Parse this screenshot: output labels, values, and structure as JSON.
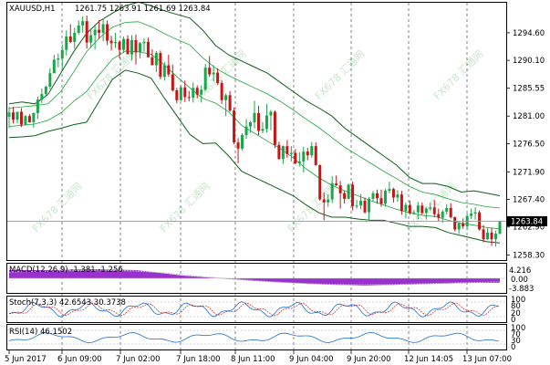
{
  "header": {
    "symbol_label": "XAUUSD,H1",
    "ohlc_label": "1261.75 1263.91 1261.69 1263.84"
  },
  "price_axis": {
    "ticks": [
      "1294.60",
      "1290.10",
      "1285.55",
      "1281.00",
      "1276.50",
      "1271.90",
      "1267.40",
      "1262.90",
      "1258.30"
    ]
  },
  "current_price": {
    "label": "1263.84",
    "value": 1263.84
  },
  "time_axis": {
    "labels": [
      "5 Jun 2017",
      "6 Jun 09:00",
      "7 Jun 02:00",
      "7 Jun 18:00",
      "8 Jun 11:00",
      "9 Jun 04:00",
      "9 Jun 20:00",
      "12 Jun 14:05",
      "13 Jun 07:00"
    ]
  },
  "watermark": {
    "text": "FX678 汇通网"
  },
  "macd": {
    "label": "MACD(12,26,9) -1.381 -1.256",
    "ticks": [
      "4.216",
      "0.00",
      "-3.883"
    ]
  },
  "stoch": {
    "label": "Stoch(7,3,3) 42.6543 30.3738",
    "ticks": [
      "100",
      "80",
      "20",
      "0"
    ]
  },
  "rsi": {
    "label": "RSI(14) 46.1502",
    "ticks": [
      "100",
      "70",
      "30",
      "0"
    ]
  },
  "colors": {
    "bull": "#17a84a",
    "bear": "#c81414",
    "band_outer": "#0f5e1a",
    "band_inner": "#1fa33a",
    "macd_fill": "#9932cc",
    "stoch_main": "#1e6fd6",
    "stoch_signal": "#d02020",
    "rsi_line": "#1e6fd6"
  },
  "chart_data": {
    "type": "candlestick",
    "title": "XAUUSD,H1",
    "ylim": [
      1257.5,
      1299.5
    ],
    "ohlc": [
      [
        1280.9,
        1282.5,
        1279.0,
        1281.6
      ],
      [
        1281.6,
        1282.5,
        1279.8,
        1280.4
      ],
      [
        1280.4,
        1281.7,
        1279.8,
        1281.7
      ],
      [
        1281.7,
        1282.3,
        1279.2,
        1279.6
      ],
      [
        1279.6,
        1281.2,
        1279.6,
        1281.0
      ],
      [
        1281.0,
        1281.3,
        1279.9,
        1280.0
      ],
      [
        1280.0,
        1281.6,
        1279.1,
        1281.5
      ],
      [
        1281.5,
        1284.2,
        1280.5,
        1283.7
      ],
      [
        1283.7,
        1285.5,
        1283.1,
        1284.6
      ],
      [
        1284.6,
        1286.0,
        1284.1,
        1285.8
      ],
      [
        1285.8,
        1288.8,
        1285.4,
        1288.0
      ],
      [
        1288.0,
        1291.0,
        1288.0,
        1290.2
      ],
      [
        1290.2,
        1291.2,
        1289.0,
        1290.4
      ],
      [
        1290.4,
        1292.7,
        1288.8,
        1291.8
      ],
      [
        1291.8,
        1295.0,
        1290.9,
        1294.0
      ],
      [
        1294.0,
        1296.0,
        1292.9,
        1293.1
      ],
      [
        1293.1,
        1295.4,
        1292.0,
        1294.6
      ],
      [
        1294.6,
        1296.6,
        1294.3,
        1295.8
      ],
      [
        1295.8,
        1297.3,
        1294.6,
        1296.5
      ],
      [
        1296.5,
        1297.4,
        1292.0,
        1293.0
      ],
      [
        1293.0,
        1295.3,
        1292.1,
        1294.2
      ],
      [
        1294.2,
        1296.0,
        1291.9,
        1295.1
      ],
      [
        1295.1,
        1296.7,
        1293.6,
        1294.6
      ],
      [
        1294.6,
        1296.9,
        1293.2,
        1296.0
      ],
      [
        1296.0,
        1296.6,
        1292.6,
        1293.3
      ],
      [
        1293.3,
        1294.1,
        1291.7,
        1292.9
      ],
      [
        1292.9,
        1294.6,
        1292.1,
        1293.1
      ],
      [
        1293.1,
        1293.4,
        1290.4,
        1291.8
      ],
      [
        1291.8,
        1294.0,
        1291.3,
        1293.6
      ],
      [
        1293.6,
        1294.2,
        1291.1,
        1291.1
      ],
      [
        1291.1,
        1294.2,
        1290.1,
        1293.4
      ],
      [
        1293.4,
        1294.3,
        1289.4,
        1291.4
      ],
      [
        1291.4,
        1293.1,
        1290.4,
        1292.9
      ],
      [
        1292.9,
        1293.7,
        1291.5,
        1293.1
      ],
      [
        1293.1,
        1293.8,
        1290.6,
        1290.6
      ],
      [
        1290.6,
        1291.9,
        1289.3,
        1289.3
      ],
      [
        1289.3,
        1291.6,
        1288.2,
        1291.3
      ],
      [
        1291.3,
        1291.7,
        1287.0,
        1287.4
      ],
      [
        1287.4,
        1289.8,
        1286.8,
        1289.3
      ],
      [
        1289.3,
        1291.0,
        1287.4,
        1287.8
      ],
      [
        1287.8,
        1289.4,
        1285.0,
        1285.2
      ],
      [
        1285.2,
        1285.6,
        1283.1,
        1283.6
      ],
      [
        1283.6,
        1286.1,
        1283.5,
        1285.7
      ],
      [
        1285.7,
        1286.8,
        1283.3,
        1284.1
      ],
      [
        1284.1,
        1285.1,
        1283.4,
        1284.0
      ],
      [
        1284.0,
        1286.5,
        1283.2,
        1285.6
      ],
      [
        1285.6,
        1286.0,
        1283.9,
        1284.5
      ],
      [
        1284.5,
        1286.0,
        1283.2,
        1285.3
      ],
      [
        1285.3,
        1289.5,
        1285.1,
        1288.9
      ],
      [
        1288.9,
        1290.8,
        1287.4,
        1287.8
      ],
      [
        1287.8,
        1289.3,
        1286.7,
        1288.1
      ],
      [
        1288.1,
        1288.8,
        1286.1,
        1286.4
      ],
      [
        1286.4,
        1286.8,
        1283.0,
        1283.6
      ],
      [
        1283.6,
        1284.7,
        1281.0,
        1284.4
      ],
      [
        1284.4,
        1285.1,
        1281.7,
        1281.9
      ],
      [
        1281.9,
        1282.4,
        1276.4,
        1276.7
      ],
      [
        1276.7,
        1277.4,
        1273.3,
        1275.7
      ],
      [
        1275.7,
        1278.2,
        1275.4,
        1277.9
      ],
      [
        1277.9,
        1280.5,
        1277.3,
        1279.3
      ],
      [
        1279.3,
        1280.2,
        1278.3,
        1280.0
      ],
      [
        1280.0,
        1283.5,
        1279.0,
        1281.5
      ],
      [
        1281.5,
        1282.7,
        1277.9,
        1278.6
      ],
      [
        1278.6,
        1280.0,
        1278.2,
        1278.9
      ],
      [
        1278.9,
        1283.0,
        1278.3,
        1281.1
      ],
      [
        1281.1,
        1282.0,
        1278.7,
        1281.7
      ],
      [
        1281.7,
        1281.9,
        1275.8,
        1276.3
      ],
      [
        1276.3,
        1276.8,
        1273.9,
        1274.0
      ],
      [
        1274.0,
        1276.2,
        1273.2,
        1276.1
      ],
      [
        1276.1,
        1277.1,
        1274.2,
        1274.8
      ],
      [
        1274.8,
        1276.1,
        1273.6,
        1275.0
      ],
      [
        1275.0,
        1275.6,
        1273.1,
        1273.3
      ],
      [
        1273.3,
        1275.1,
        1272.8,
        1273.6
      ],
      [
        1273.6,
        1276.0,
        1271.8,
        1275.2
      ],
      [
        1275.2,
        1275.8,
        1273.8,
        1274.6
      ],
      [
        1274.6,
        1276.8,
        1274.2,
        1276.1
      ],
      [
        1276.1,
        1276.7,
        1272.9,
        1273.0
      ],
      [
        1273.0,
        1273.1,
        1267.2,
        1267.4
      ],
      [
        1267.4,
        1268.5,
        1264.0,
        1266.9
      ],
      [
        1266.9,
        1268.2,
        1266.2,
        1267.4
      ],
      [
        1267.4,
        1271.2,
        1266.8,
        1270.0
      ],
      [
        1270.0,
        1271.3,
        1269.6,
        1269.7
      ],
      [
        1269.7,
        1270.4,
        1265.9,
        1268.4
      ],
      [
        1268.4,
        1268.8,
        1266.7,
        1267.5
      ],
      [
        1267.5,
        1270.0,
        1267.4,
        1269.8
      ],
      [
        1269.8,
        1270.3,
        1265.6,
        1266.3
      ],
      [
        1266.3,
        1267.3,
        1265.9,
        1266.4
      ],
      [
        1266.4,
        1268.3,
        1265.8,
        1267.2
      ],
      [
        1267.2,
        1267.7,
        1265.1,
        1265.3
      ],
      [
        1265.3,
        1267.8,
        1264.0,
        1267.5
      ],
      [
        1267.5,
        1268.8,
        1267.0,
        1268.4
      ],
      [
        1268.4,
        1269.0,
        1266.7,
        1267.6
      ],
      [
        1267.6,
        1269.0,
        1266.2,
        1266.7
      ],
      [
        1266.7,
        1269.1,
        1266.2,
        1268.8
      ],
      [
        1268.8,
        1270.3,
        1268.4,
        1269.1
      ],
      [
        1269.1,
        1269.3,
        1266.9,
        1267.7
      ],
      [
        1267.7,
        1268.9,
        1267.0,
        1268.2
      ],
      [
        1268.2,
        1268.8,
        1264.9,
        1265.5
      ],
      [
        1265.5,
        1266.9,
        1264.3,
        1266.5
      ],
      [
        1266.5,
        1267.2,
        1264.9,
        1265.2
      ],
      [
        1265.2,
        1265.7,
        1264.9,
        1265.3
      ],
      [
        1265.3,
        1267.0,
        1264.2,
        1266.4
      ],
      [
        1266.4,
        1266.9,
        1264.9,
        1265.2
      ],
      [
        1265.2,
        1266.1,
        1264.1,
        1265.9
      ],
      [
        1265.9,
        1266.9,
        1265.6,
        1266.1
      ],
      [
        1266.1,
        1267.3,
        1264.5,
        1265.0
      ],
      [
        1265.0,
        1265.9,
        1263.9,
        1264.4
      ],
      [
        1264.4,
        1265.7,
        1263.6,
        1265.4
      ],
      [
        1265.4,
        1266.6,
        1264.9,
        1266.0
      ],
      [
        1266.0,
        1266.8,
        1264.3,
        1264.5
      ],
      [
        1264.5,
        1264.6,
        1262.2,
        1262.5
      ],
      [
        1262.5,
        1263.7,
        1261.8,
        1263.5
      ],
      [
        1263.5,
        1264.3,
        1262.6,
        1263.0
      ],
      [
        1263.0,
        1265.1,
        1262.4,
        1264.7
      ],
      [
        1264.7,
        1265.9,
        1264.2,
        1265.1
      ],
      [
        1265.1,
        1266.1,
        1264.1,
        1265.3
      ],
      [
        1265.3,
        1265.6,
        1262.3,
        1262.5
      ],
      [
        1262.5,
        1263.2,
        1260.4,
        1260.9
      ],
      [
        1260.9,
        1262.8,
        1260.8,
        1262.0
      ],
      [
        1262.0,
        1262.8,
        1259.8,
        1260.9
      ],
      [
        1260.9,
        1262.3,
        1259.7,
        1261.8
      ],
      [
        1261.8,
        1263.9,
        1261.7,
        1263.8
      ]
    ],
    "bollinger_outer": {
      "upper": [
        1283.0,
        1283.3,
        1283.0,
        1284.5,
        1288.0,
        1291.5,
        1294.5,
        1296.5,
        1297.8,
        1299.0,
        1299.6,
        1299.0,
        1298.2,
        1297.6,
        1297.0,
        1295.0,
        1292.5,
        1291.0,
        1290.0,
        1289.0,
        1288.0,
        1286.5,
        1285.0,
        1283.5,
        1282.3,
        1281.0,
        1279.0,
        1277.5,
        1276.0,
        1274.5,
        1273.0,
        1271.0,
        1270.0,
        1270.0,
        1269.5,
        1268.6,
        1268.8,
        1268.4,
        1268.0
      ],
      "lower": [
        1277.5,
        1277.6,
        1277.8,
        1278.5,
        1279.0,
        1279.6,
        1280.0,
        1283.5,
        1287.0,
        1288.5,
        1288.0,
        1287.2,
        1284.0,
        1281.0,
        1278.0,
        1276.5,
        1276.6,
        1274.5,
        1272.0,
        1271.0,
        1270.0,
        1269.0,
        1268.0,
        1266.5,
        1265.2,
        1264.5,
        1264.5,
        1264.2,
        1264.0,
        1264.0,
        1263.5,
        1263.0,
        1263.0,
        1262.8,
        1262.0,
        1261.5,
        1261.0,
        1260.5,
        1260.3
      ]
    },
    "bollinger_inner": {
      "upper": [
        1282.3,
        1282.5,
        1282.7,
        1283.0,
        1285.0,
        1288.2,
        1291.5,
        1293.8,
        1295.5,
        1296.3,
        1296.4,
        1295.6,
        1294.5,
        1293.5,
        1292.6,
        1290.5,
        1288.8,
        1287.6,
        1286.6,
        1285.6,
        1284.6,
        1283.4,
        1282.0,
        1280.5,
        1279.1,
        1277.5,
        1275.9,
        1274.6,
        1273.3,
        1272.0,
        1270.8,
        1269.5,
        1268.6,
        1268.2,
        1267.5,
        1266.9,
        1266.6,
        1266.2,
        1266.0
      ],
      "lower": [
        1279.3,
        1279.5,
        1279.7,
        1280.3,
        1281.5,
        1283.4,
        1285.0,
        1287.8,
        1290.3,
        1291.6,
        1291.5,
        1291.1,
        1289.4,
        1287.4,
        1285.6,
        1283.9,
        1283.1,
        1281.7,
        1279.5,
        1278.2,
        1276.9,
        1275.7,
        1274.2,
        1272.4,
        1270.9,
        1269.7,
        1268.8,
        1268.0,
        1267.2,
        1266.5,
        1265.8,
        1265.2,
        1264.8,
        1264.6,
        1264.0,
        1263.5,
        1263.2,
        1262.8,
        1262.6
      ]
    }
  }
}
